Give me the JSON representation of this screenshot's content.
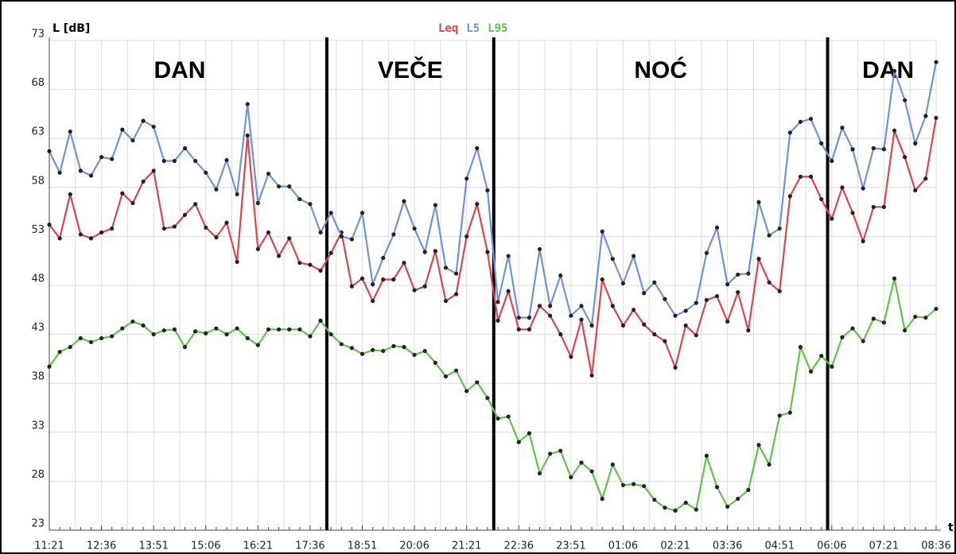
{
  "chart_data": {
    "type": "line",
    "y_label": "L [dB]",
    "x_label": "t",
    "annotations": [
      "DAN",
      "VEČE",
      "NOĆ",
      "DAN"
    ],
    "categories": [
      "11:21",
      null,
      null,
      null,
      null,
      "12:36",
      null,
      null,
      null,
      null,
      "13:51",
      null,
      null,
      null,
      null,
      "15:06",
      null,
      null,
      null,
      null,
      "16:21",
      null,
      null,
      null,
      null,
      "17:36",
      null,
      null,
      null,
      null,
      "18:51",
      null,
      null,
      null,
      null,
      "20:06",
      null,
      null,
      null,
      null,
      "21:21",
      null,
      null,
      null,
      null,
      "22:36",
      null,
      null,
      null,
      null,
      "23:51",
      null,
      null,
      null,
      null,
      "01:06",
      null,
      null,
      null,
      null,
      "02:21",
      null,
      null,
      null,
      null,
      "03:36",
      null,
      null,
      null,
      null,
      "04:51",
      null,
      null,
      null,
      null,
      "06:06",
      null,
      null,
      null,
      null,
      "07:21",
      null,
      null,
      null,
      null,
      "08:36"
    ],
    "series": [
      {
        "name": "Leq",
        "color": "#d9454f",
        "values": [
          54.2,
          52.8,
          57.3,
          53.2,
          52.8,
          53.4,
          53.8,
          57.4,
          56.4,
          58.6,
          59.7,
          53.8,
          54.0,
          55.2,
          56.3,
          53.9,
          52.9,
          54.4,
          50.4,
          63.3,
          51.7,
          53.4,
          51.0,
          52.8,
          50.3,
          50.1,
          49.5,
          51.3,
          53.4,
          47.9,
          48.7,
          46.4,
          48.6,
          48.6,
          50.3,
          47.5,
          47.9,
          51.5,
          46.4,
          47.1,
          53.0,
          56.3,
          51.4,
          44.4,
          47.4,
          43.5,
          43.5,
          45.9,
          44.9,
          43.0,
          40.7,
          44.5,
          38.8,
          48.6,
          45.9,
          43.9,
          45.5,
          44.0,
          43.0,
          42.3,
          39.6,
          43.9,
          42.9,
          46.5,
          46.9,
          44.3,
          47.3,
          43.4,
          50.7,
          48.3,
          47.4,
          57.1,
          59.1,
          59.1,
          56.8,
          54.8,
          58.0,
          55.4,
          52.5,
          56.0,
          56.0,
          63.8,
          61.1,
          57.7,
          58.9,
          65.1
        ]
      },
      {
        "name": "L5",
        "color": "#6f93d6",
        "values": [
          61.7,
          59.5,
          63.7,
          59.7,
          59.2,
          61.1,
          60.9,
          63.9,
          62.8,
          64.8,
          64.2,
          60.7,
          60.7,
          62.0,
          60.7,
          59.5,
          57.8,
          60.8,
          57.3,
          66.5,
          56.4,
          59.4,
          58.1,
          58.1,
          56.8,
          56.3,
          53.4,
          55.4,
          53.0,
          52.7,
          55.4,
          48.1,
          50.8,
          53.2,
          56.6,
          53.8,
          51.4,
          56.2,
          49.8,
          49.2,
          58.9,
          62.0,
          57.7,
          46.3,
          51.0,
          44.7,
          44.7,
          51.7,
          45.9,
          49.0,
          44.9,
          45.9,
          43.9,
          53.5,
          50.7,
          48.2,
          51.0,
          47.2,
          48.3,
          46.6,
          44.9,
          45.4,
          46.2,
          51.3,
          53.9,
          48.1,
          49.1,
          49.2,
          56.5,
          53.1,
          53.8,
          63.6,
          64.7,
          65.0,
          62.5,
          60.7,
          64.1,
          61.9,
          57.9,
          62.0,
          61.9,
          69.9,
          66.9,
          62.5,
          65.3,
          70.8
        ]
      },
      {
        "name": "L95",
        "color": "#5cc545",
        "values": [
          39.7,
          41.2,
          41.7,
          42.6,
          42.2,
          42.6,
          42.8,
          43.6,
          44.3,
          43.9,
          43.0,
          43.4,
          43.5,
          41.7,
          43.3,
          43.1,
          43.6,
          43.0,
          43.6,
          42.6,
          41.9,
          43.5,
          43.5,
          43.5,
          43.5,
          42.8,
          44.4,
          43.0,
          42.0,
          41.6,
          41.0,
          41.4,
          41.3,
          41.8,
          41.7,
          40.9,
          41.3,
          40.1,
          38.7,
          39.3,
          37.2,
          38.1,
          36.5,
          34.4,
          34.6,
          32.0,
          32.9,
          28.8,
          30.8,
          31.1,
          28.4,
          29.9,
          29.0,
          26.2,
          29.7,
          27.6,
          27.7,
          27.5,
          26.1,
          25.3,
          25.0,
          25.8,
          25.1,
          30.6,
          27.4,
          25.4,
          26.2,
          27.1,
          31.7,
          29.7,
          34.7,
          35.0,
          41.7,
          39.2,
          40.8,
          39.7,
          42.7,
          43.6,
          42.3,
          44.6,
          44.2,
          48.7,
          43.4,
          44.8,
          44.7,
          45.6
        ]
      }
    ],
    "ylim": [
      23,
      73
    ],
    "yticks": [
      23,
      28,
      33,
      38,
      43,
      48,
      53,
      58,
      63,
      68,
      73
    ],
    "grid": true
  }
}
